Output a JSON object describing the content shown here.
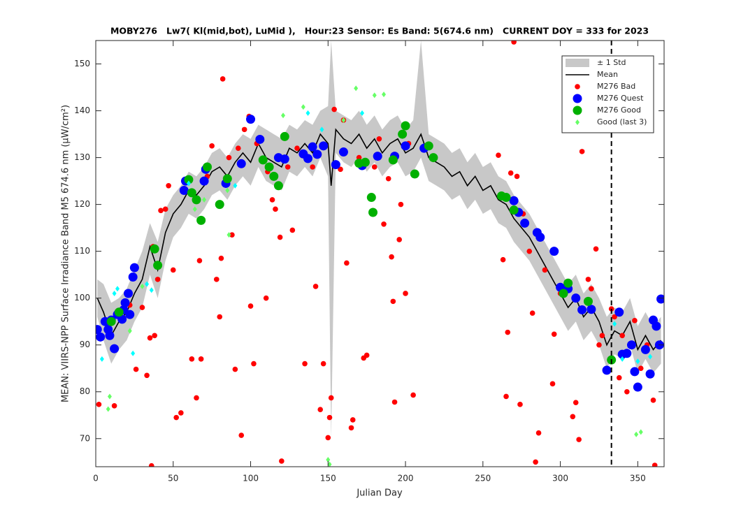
{
  "chart_data": {
    "type": "scatter",
    "title": "MOBY276   Lw7( Kl(mid,bot), LuMid ),   Hour:23 Sensor: Es Band: 5(674.6 nm)   CURRENT DOY = 333 for 2023",
    "xlabel": "Julian Day",
    "ylabel": "MEAN: VIIRS-NPP Surface Irradiance Band M5 674.6 nm (µW/cm²)",
    "xlim": [
      0,
      367
    ],
    "ylim": [
      64,
      155
    ],
    "xticks": [
      0,
      50,
      100,
      150,
      200,
      250,
      300,
      350
    ],
    "yticks": [
      70,
      80,
      90,
      100,
      110,
      120,
      130,
      140,
      150
    ],
    "current_doy": 333,
    "legend_loc": "northeast",
    "series": [
      {
        "name": "± 1 Std",
        "kind": "band",
        "color": "#c8c8c8",
        "x": [
          1,
          5,
          10,
          15,
          20,
          25,
          30,
          35,
          40,
          45,
          50,
          55,
          60,
          65,
          70,
          75,
          80,
          85,
          90,
          95,
          100,
          105,
          110,
          115,
          120,
          125,
          130,
          135,
          140,
          145,
          150,
          152,
          155,
          160,
          165,
          170,
          175,
          180,
          185,
          190,
          195,
          200,
          205,
          210,
          215,
          220,
          225,
          230,
          235,
          240,
          245,
          250,
          255,
          260,
          265,
          270,
          275,
          280,
          285,
          290,
          295,
          300,
          305,
          310,
          315,
          320,
          325,
          330,
          335,
          340,
          345,
          350,
          355,
          360,
          365
        ],
        "upper": [
          104,
          103,
          99,
          100,
          102,
          106,
          110,
          116,
          112,
          119,
          122,
          124,
          127,
          126,
          128,
          131,
          132,
          130,
          133,
          135,
          134,
          137,
          136,
          135,
          134,
          137,
          136,
          138,
          137,
          140,
          141,
          155,
          140,
          139,
          138,
          140,
          137,
          139,
          136,
          138,
          139,
          136,
          138,
          155,
          135,
          134,
          133,
          131,
          132,
          129,
          131,
          128,
          129,
          126,
          125,
          122,
          120,
          118,
          115,
          112,
          109,
          106,
          103,
          105,
          101,
          103,
          100,
          96,
          98,
          97,
          100,
          94,
          97,
          94,
          96
        ],
        "lower": [
          96,
          91,
          86,
          89,
          91,
          95,
          98,
          105,
          100,
          108,
          113,
          115,
          118,
          117,
          119,
          122,
          123,
          121,
          124,
          126,
          124,
          128,
          125,
          124,
          123,
          127,
          126,
          128,
          126,
          130,
          126,
          70,
          131,
          129,
          128,
          130,
          127,
          129,
          126,
          128,
          129,
          126,
          127,
          130,
          125,
          124,
          123,
          121,
          122,
          119,
          121,
          118,
          119,
          116,
          115,
          112,
          110,
          108,
          105,
          102,
          99,
          96,
          93,
          95,
          91,
          93,
          90,
          85,
          88,
          87,
          90,
          84,
          87,
          84,
          86
        ]
      },
      {
        "name": "Mean",
        "kind": "line",
        "color": "#000000",
        "x": [
          1,
          5,
          10,
          15,
          20,
          25,
          30,
          35,
          40,
          45,
          50,
          55,
          60,
          65,
          70,
          75,
          80,
          85,
          90,
          95,
          100,
          105,
          110,
          115,
          120,
          125,
          130,
          135,
          140,
          145,
          150,
          152,
          155,
          160,
          165,
          170,
          175,
          180,
          185,
          190,
          195,
          200,
          205,
          210,
          215,
          220,
          225,
          230,
          235,
          240,
          245,
          250,
          255,
          260,
          265,
          270,
          275,
          280,
          285,
          290,
          295,
          300,
          305,
          310,
          315,
          320,
          325,
          330,
          335,
          340,
          345,
          350,
          355,
          360,
          365
        ],
        "values": [
          100,
          97,
          92,
          95,
          97,
          101,
          104,
          111,
          106,
          114,
          118,
          120,
          123,
          122,
          124,
          127,
          128,
          126,
          129,
          131,
          129,
          133,
          130,
          129,
          128,
          132,
          131,
          133,
          131,
          135,
          133,
          124,
          136,
          134,
          133,
          135,
          132,
          134,
          131,
          133,
          134,
          131,
          132,
          135,
          130,
          129,
          128,
          126,
          127,
          124,
          126,
          123,
          124,
          121,
          120,
          117,
          115,
          113,
          110,
          107,
          104,
          101,
          98,
          100,
          96,
          98,
          95,
          90,
          93,
          92,
          95,
          89,
          92,
          89,
          91
        ]
      },
      {
        "name": "M276 Bad",
        "kind": "scatter",
        "marker": "small",
        "color": "#ff0000",
        "x": [
          2,
          12,
          22,
          26,
          30,
          33,
          35,
          36,
          37,
          38,
          40,
          42,
          45,
          47,
          50,
          52,
          55,
          62,
          65,
          67,
          68,
          72,
          75,
          78,
          80,
          81,
          82,
          86,
          88,
          90,
          92,
          94,
          96,
          99,
          100,
          102,
          104,
          110,
          111,
          114,
          116,
          119,
          120,
          124,
          127,
          130,
          135,
          140,
          142,
          145,
          147,
          150,
          151,
          152,
          154,
          158,
          160,
          162,
          165,
          166,
          170,
          173,
          175,
          180,
          183,
          186,
          189,
          191,
          192,
          193,
          196,
          197,
          200,
          202,
          205,
          260,
          263,
          265,
          266,
          268,
          270,
          272,
          274,
          276,
          280,
          282,
          284,
          286,
          290,
          295,
          296,
          300,
          308,
          310,
          312,
          314,
          318,
          320,
          323,
          325,
          327,
          333,
          335,
          338,
          340,
          343,
          348,
          352,
          356,
          360,
          361
        ],
        "values": [
          77.3,
          77,
          98.5,
          84.8,
          98,
          83.5,
          91.5,
          64.2,
          111,
          92,
          104,
          118.7,
          119,
          124,
          106,
          74.5,
          75.5,
          87,
          78.7,
          108,
          87,
          126,
          132.5,
          104,
          96,
          108.5,
          146.8,
          130,
          113.5,
          84.8,
          132,
          70.7,
          136,
          138.8,
          98.3,
          86,
          133,
          100,
          127,
          121,
          119,
          113,
          65.2,
          128,
          114.5,
          132,
          86,
          128,
          102.5,
          76.2,
          86,
          70.2,
          74.5,
          78.7,
          140.3,
          127.5,
          138,
          107.5,
          72.3,
          74,
          130,
          87.2,
          87.8,
          128,
          134,
          115.8,
          125.5,
          108.8,
          99.3,
          77.8,
          112.5,
          120,
          101,
          133,
          79.3,
          130.5,
          108.2,
          79,
          92.7,
          126.7,
          154.7,
          126,
          77.3,
          118,
          110,
          96.8,
          65,
          71.2,
          106,
          81.7,
          92.3,
          101,
          74.7,
          77.7,
          69.8,
          131.3,
          104,
          102,
          110.5,
          90,
          92,
          97.7,
          96,
          83,
          92,
          80,
          95.2,
          85,
          90,
          78.2,
          64.3
        ]
      },
      {
        "name": "M276 Quest",
        "kind": "scatter",
        "marker": "large",
        "color": "#0000ff",
        "x": [
          1,
          3,
          6,
          8,
          9,
          10,
          12,
          14,
          17,
          18,
          19,
          21,
          22,
          24,
          25,
          57,
          58,
          70,
          71,
          84,
          94,
          100,
          106,
          118,
          122,
          134,
          137,
          140,
          143,
          147,
          155,
          160,
          172,
          182,
          193,
          200,
          212,
          270,
          273,
          277,
          285,
          287,
          296,
          300,
          305,
          310,
          314,
          320,
          330,
          338,
          340,
          343,
          346,
          348,
          350,
          355,
          358,
          360,
          362,
          365,
          364
        ],
        "values": [
          93.3,
          91.7,
          95,
          93.3,
          92,
          95.3,
          89.2,
          96.5,
          95.5,
          97.5,
          99,
          101,
          96.5,
          104.5,
          106.5,
          123,
          125,
          125,
          127.5,
          124.5,
          128.7,
          138.2,
          133.9,
          130,
          129.7,
          130.8,
          129.8,
          132.3,
          130.7,
          132.5,
          128.5,
          131.2,
          128.3,
          130.3,
          130.3,
          132.5,
          132,
          120.8,
          118.3,
          116,
          114,
          113,
          110,
          102.3,
          102,
          100,
          97.5,
          97.6,
          84.6,
          97,
          88,
          88.2,
          90,
          84.3,
          81,
          89,
          83.8,
          95.3,
          94,
          99.8,
          90
        ]
      },
      {
        "name": "M276 Good",
        "kind": "scatter",
        "marker": "large",
        "color": "#00b000",
        "x": [
          10,
          15,
          38,
          40,
          60,
          62,
          65,
          68,
          72,
          80,
          85,
          108,
          112,
          115,
          118,
          122,
          170,
          174,
          178,
          179,
          192,
          198,
          200,
          206,
          215,
          218,
          262,
          265,
          270,
          302,
          305,
          318,
          333
        ],
        "values": [
          95,
          97,
          110.5,
          107,
          125.3,
          122.5,
          121,
          116.6,
          128,
          120,
          125.5,
          129.5,
          128,
          126,
          124,
          134.5,
          128.8,
          129,
          121.5,
          118.3,
          129.5,
          135,
          136.8,
          126.5,
          132.5,
          130,
          121.8,
          121.5,
          118.8,
          101,
          103.2,
          99.3,
          86.8
        ]
      },
      {
        "name": "Good (last 3)",
        "kind": "scatter",
        "marker": "diamond",
        "color": "#66ff66",
        "x": [
          4,
          8,
          9,
          12,
          14,
          22,
          24,
          30,
          33,
          36,
          60,
          64,
          70,
          85,
          86,
          90,
          121,
          134,
          137,
          146,
          150,
          151,
          160,
          168,
          172,
          180,
          186,
          335,
          340,
          349,
          350,
          352,
          358
        ],
        "values": [
          87,
          76.3,
          79,
          101,
          102,
          93,
          88.2,
          102.5,
          103,
          101.7,
          124.5,
          119,
          121,
          123,
          113.5,
          124,
          139,
          140.8,
          139.5,
          136,
          65.5,
          64.5,
          138,
          144.8,
          139.5,
          143.3,
          143.5,
          94.5,
          87,
          70.9,
          86.5,
          71.4,
          87.5
        ],
        "point_colors": [
          "#00ffff",
          "#66ff66",
          "#66ff66",
          "#00ffff",
          "#00ffff",
          "#66ff66",
          "#00ffff",
          "#66ff66",
          "#00ffff",
          "#00ffff",
          "#00ffff",
          "#66ff66",
          "#66ff66",
          "#66ff66",
          "#66ff66",
          "#00ffff",
          "#66ff66",
          "#66ff66",
          "#00ffff",
          "#00ffff",
          "#66ff66",
          "#66ff66",
          "#66ff66",
          "#66ff66",
          "#00ffff",
          "#66ff66",
          "#66ff66",
          "#00ffff",
          "#00ffff",
          "#66ff66",
          "#00ffff",
          "#66ff66",
          "#00ffff"
        ]
      }
    ]
  }
}
